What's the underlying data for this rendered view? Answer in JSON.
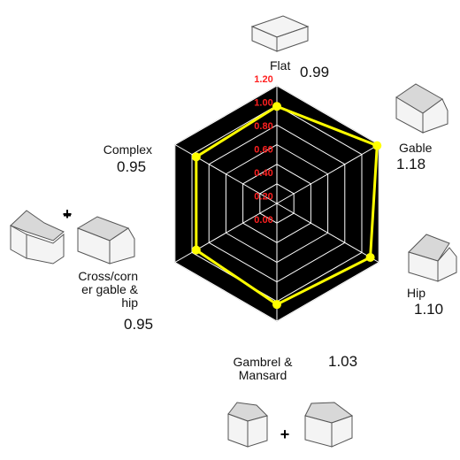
{
  "chart_data": {
    "type": "radar",
    "categories": [
      "Flat",
      "Gable",
      "Hip",
      "Gambrel & Mansard",
      "Cross/corner gable & hip",
      "Complex"
    ],
    "values": [
      0.99,
      1.18,
      1.1,
      1.03,
      0.95,
      0.95
    ],
    "value_labels": [
      "0.99",
      "1.18",
      "1.10",
      "1.03",
      "0.95",
      "0.95"
    ],
    "color": "#ffff00",
    "rlim": [
      0,
      1.2
    ],
    "rticks": [
      {
        "value": 0,
        "label": "0.00"
      },
      {
        "value": 0.2,
        "label": "0.20"
      },
      {
        "value": 0.4,
        "label": "0.40"
      },
      {
        "value": 0.6,
        "label": "0.60"
      },
      {
        "value": 0.8,
        "label": "0.80"
      },
      {
        "value": 1.0,
        "label": "1.00"
      },
      {
        "value": 1.2,
        "label": "1.20"
      }
    ],
    "grid": true
  }
}
